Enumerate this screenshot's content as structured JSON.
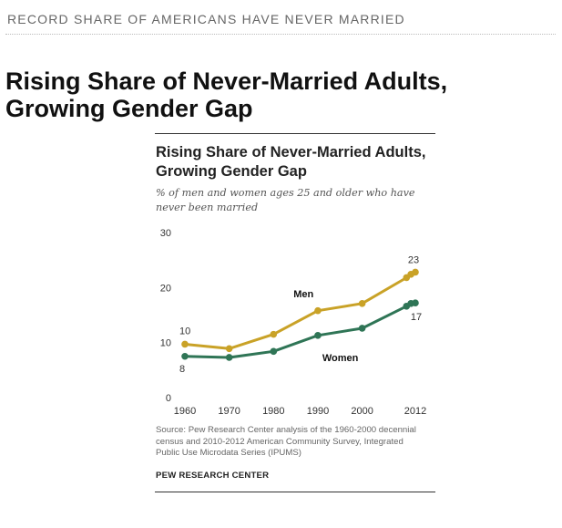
{
  "kicker": "RECORD SHARE OF AMERICANS HAVE NEVER MARRIED",
  "headline": "Rising Share of Never-Married Adults, Growing Gender Gap",
  "card": {
    "title": "Rising Share of Never-Married Adults, Growing Gender Gap",
    "subtitle": "% of men and women ages 25 and older who have never been married",
    "source": "Source: Pew Research Center analysis of the 1960-2000 decennial census and 2010-2012 American Community Survey, Integrated Public Use Microdata Series (IPUMS)",
    "brand": "PEW RESEARCH CENTER"
  },
  "chart_data": {
    "type": "line",
    "title": "Rising Share of Never-Married Adults, Growing Gender Gap",
    "subtitle": "% of men and women ages 25 and older who have never been married",
    "x": [
      1960,
      1970,
      1980,
      1990,
      2000,
      2010,
      2011,
      2012
    ],
    "xticks": [
      "1960",
      "1970",
      "1980",
      "1990",
      "2000",
      "2012"
    ],
    "xtick_values": [
      1960,
      1970,
      1980,
      1990,
      2000,
      2012
    ],
    "yticks": [
      "0",
      "10",
      "20",
      "30"
    ],
    "ytick_values": [
      0,
      10,
      20,
      30
    ],
    "xlim": [
      1960,
      2012
    ],
    "ylim": [
      0,
      30
    ],
    "grid": false,
    "series": [
      {
        "name": "Men",
        "color": "#c9a227",
        "values": [
          9.7,
          8.9,
          11.5,
          15.8,
          17.1,
          21.8,
          22.4,
          22.8
        ],
        "start_label": "10",
        "end_label": "23"
      },
      {
        "name": "Women",
        "color": "#2f7556",
        "values": [
          7.5,
          7.3,
          8.4,
          11.3,
          12.6,
          16.6,
          17.1,
          17.2
        ],
        "start_label": "8",
        "end_label": "17"
      }
    ]
  }
}
